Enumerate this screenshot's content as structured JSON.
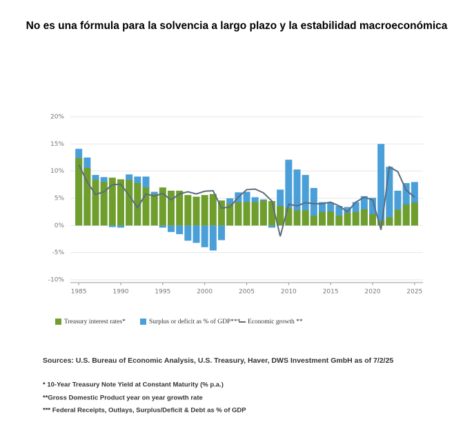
{
  "chart_data": {
    "type": "bar",
    "title": "No es una fórmula para la solvencia a largo plazo y la estabilidad macroeconómica",
    "x": [
      1985,
      1986,
      1987,
      1988,
      1989,
      1990,
      1991,
      1992,
      1993,
      1994,
      1995,
      1996,
      1997,
      1998,
      1999,
      2000,
      2001,
      2002,
      2003,
      2004,
      2005,
      2006,
      2007,
      2008,
      2009,
      2010,
      2011,
      2012,
      2013,
      2014,
      2015,
      2016,
      2017,
      2018,
      2019,
      2020,
      2021,
      2022,
      2023,
      2024,
      2025
    ],
    "series": [
      {
        "name": "Treasury interest rates*",
        "color": "#6f9e2d",
        "kind": "bar",
        "values": [
          12.4,
          10.6,
          8.4,
          8.0,
          8.8,
          8.5,
          8.4,
          7.8,
          7.0,
          5.8,
          7.0,
          6.4,
          6.4,
          5.6,
          5.3,
          5.6,
          5.8,
          4.6,
          4.0,
          4.3,
          4.3,
          4.3,
          4.6,
          4.5,
          3.6,
          3.2,
          2.8,
          2.8,
          1.8,
          2.5,
          2.6,
          1.8,
          2.3,
          2.5,
          3.0,
          2.1,
          0.9,
          1.5,
          2.9,
          3.9,
          4.2
        ]
      },
      {
        "name": "Surplus or deficit as % of GDP***",
        "color": "#4a9fd8",
        "kind": "bar",
        "values": [
          14.1,
          12.5,
          9.3,
          8.9,
          -0.3,
          -0.4,
          9.4,
          9.0,
          9.0,
          6.2,
          -0.4,
          -1.2,
          -1.6,
          -2.8,
          -3.2,
          -4.0,
          -4.6,
          -2.7,
          5.0,
          6.1,
          6.2,
          5.2,
          4.8,
          -0.4,
          6.6,
          12.1,
          10.3,
          9.3,
          6.9,
          4.3,
          4.2,
          3.6,
          3.4,
          4.3,
          5.4,
          5.1,
          15.0,
          10.8,
          6.4,
          7.8,
          8.0
        ]
      },
      {
        "name": "Economic growth **",
        "color": "#5b6b7b",
        "kind": "line",
        "values": [
          11.2,
          8.0,
          5.7,
          6.2,
          7.5,
          7.6,
          5.5,
          3.3,
          5.8,
          5.4,
          5.9,
          4.7,
          5.8,
          6.2,
          5.8,
          6.3,
          6.4,
          3.2,
          3.4,
          5.2,
          6.6,
          6.7,
          6.0,
          4.5,
          -2.0,
          3.9,
          3.6,
          4.2,
          4.0,
          4.0,
          4.3,
          3.6,
          2.5,
          4.3,
          5.2,
          4.7,
          -0.8,
          10.8,
          9.9,
          6.5,
          5.2
        ]
      }
    ],
    "xlim": [
      1984,
      2026
    ],
    "xticks": [
      1985,
      1990,
      1995,
      2000,
      2005,
      2010,
      2015,
      2020,
      2025
    ],
    "ylim": [
      -10,
      20
    ],
    "yticks": [
      {
        "value": -10,
        "label": "-10%"
      },
      {
        "value": -5,
        "label": "-5%"
      },
      {
        "value": 0,
        "label": "0%"
      },
      {
        "value": 5,
        "label": "5%"
      },
      {
        "value": 10,
        "label": "10%"
      },
      {
        "value": 15,
        "label": "15%"
      },
      {
        "value": 20,
        "label": "20%"
      }
    ],
    "grid": true,
    "source": "Sources: U.S. Bureau of Economic Analysis, U.S. Treasury, Haver, DWS Investment GmbH as of 7/2/25",
    "notes": [
      "* 10-Year Treasury Note Yield at Constant Maturity (% p.a.)",
      "**Gross Domestic Product year on year growth rate",
      "*** Federal Receipts, Outlays, Surplus/Deficit & Debt as % of GDP"
    ]
  }
}
